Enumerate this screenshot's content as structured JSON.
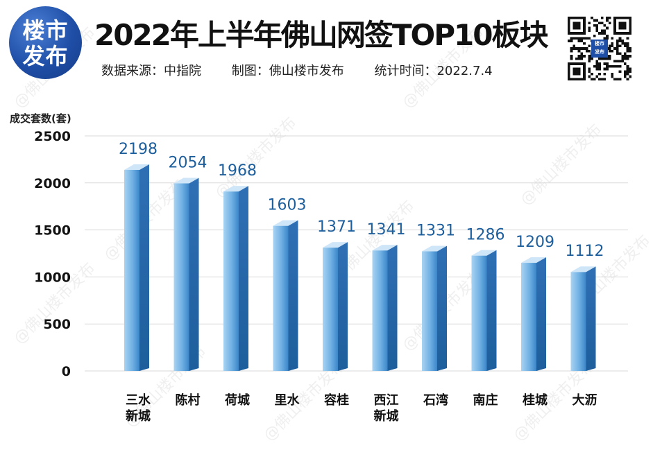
{
  "header": {
    "logo_line1": "楼市",
    "logo_line2": "发布",
    "title": "2022年上半年佛山网签TOP10板块",
    "source": "数据来源：中指院",
    "made_by": "制图：佛山楼市发布",
    "stat_time": "统计时间：2022.7.4",
    "qr_badge_line1": "楼市",
    "qr_badge_line2": "发布"
  },
  "watermark": "@佛山楼市发布",
  "chart_data": {
    "type": "bar",
    "ylabel": "成交套数(套)",
    "ylim": [
      0,
      2500
    ],
    "yticks": [
      0,
      500,
      1000,
      1500,
      2000,
      2500
    ],
    "grid": true,
    "categories": [
      [
        "三水",
        "新城"
      ],
      [
        "陈村"
      ],
      [
        "荷城"
      ],
      [
        "里水"
      ],
      [
        "容桂"
      ],
      [
        "西江",
        "新城"
      ],
      [
        "石湾"
      ],
      [
        "南庄"
      ],
      [
        "桂城"
      ],
      [
        "大沥"
      ]
    ],
    "values": [
      2198,
      2054,
      1968,
      1603,
      1371,
      1341,
      1331,
      1286,
      1209,
      1112
    ],
    "bar_color": "#3b86c9",
    "label_color": "#1d5e9c"
  }
}
